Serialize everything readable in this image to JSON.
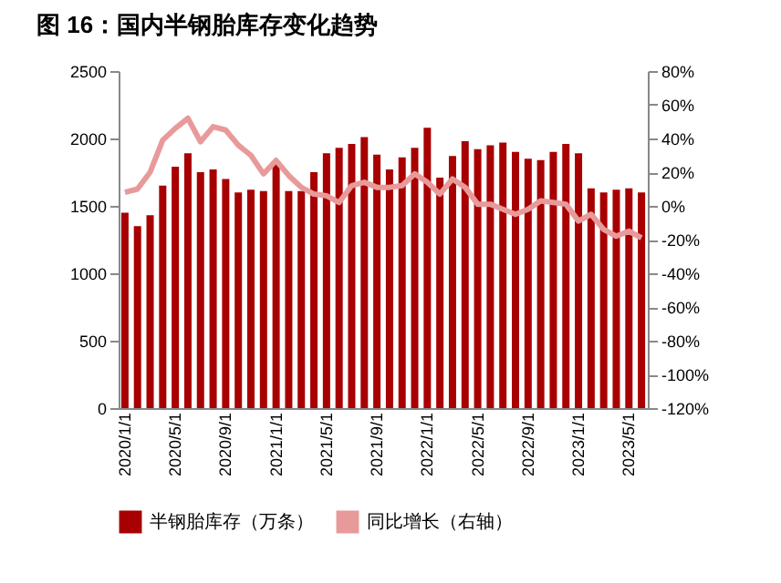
{
  "chart_data": {
    "type": "bar",
    "title": "图 16：国内半钢胎库存变化趋势",
    "categories": [
      "2020/1/1",
      null,
      null,
      null,
      "2020/5/1",
      null,
      null,
      null,
      "2020/9/1",
      null,
      null,
      null,
      "2021/1/1",
      null,
      null,
      null,
      "2021/5/1",
      null,
      null,
      null,
      "2021/9/1",
      null,
      null,
      null,
      "2022/1/1",
      null,
      null,
      null,
      "2022/5/1",
      null,
      null,
      null,
      "2022/9/1",
      null,
      null,
      null,
      "2023/1/1",
      null,
      null,
      null,
      "2023/5/1",
      null
    ],
    "series": [
      {
        "name": "半钢胎库存（万条）",
        "color": "#a80000",
        "values": [
          1450,
          1350,
          1430,
          1650,
          1790,
          1890,
          1750,
          1770,
          1700,
          1600,
          1620,
          1610,
          1810,
          1610,
          1610,
          1750,
          1890,
          1930,
          1960,
          2010,
          1880,
          1770,
          1860,
          1930,
          2080,
          1710,
          1870,
          1980,
          1920,
          1950,
          1970,
          1900,
          1850,
          1840,
          1900,
          1960,
          1890,
          1630,
          1600,
          1620,
          1630,
          1600
        ]
      },
      {
        "name": "同比增长（右轴）",
        "type": "line",
        "axis": "y2",
        "color": "#e89a9a",
        "values": [
          8,
          10,
          20,
          39,
          46,
          52,
          38,
          47,
          45,
          36,
          30,
          19,
          27,
          18,
          11,
          7,
          6,
          2,
          12,
          14,
          11,
          11,
          12,
          19,
          14,
          7,
          16,
          11,
          1,
          1,
          -2,
          -5,
          -2,
          3,
          2,
          1,
          -9,
          -5,
          -14,
          -18,
          -15,
          -19
        ]
      }
    ],
    "ylim": [
      0,
      2500
    ],
    "yticks": [
      0,
      500,
      1000,
      1500,
      2000,
      2500
    ],
    "y2lim": [
      -120,
      80
    ],
    "y2ticks": [
      {
        "value": -120,
        "label": "-120%"
      },
      {
        "value": -100,
        "label": "-100%"
      },
      {
        "value": -80,
        "label": "-80%"
      },
      {
        "value": -60,
        "label": "-60%"
      },
      {
        "value": -40,
        "label": "-40%"
      },
      {
        "value": -20,
        "label": "-20%"
      },
      {
        "value": 0,
        "label": "0%"
      },
      {
        "value": 20,
        "label": "20%"
      },
      {
        "value": 40,
        "label": "40%"
      },
      {
        "value": 60,
        "label": "60%"
      },
      {
        "value": 80,
        "label": "80%"
      }
    ],
    "legend": "bottom"
  }
}
